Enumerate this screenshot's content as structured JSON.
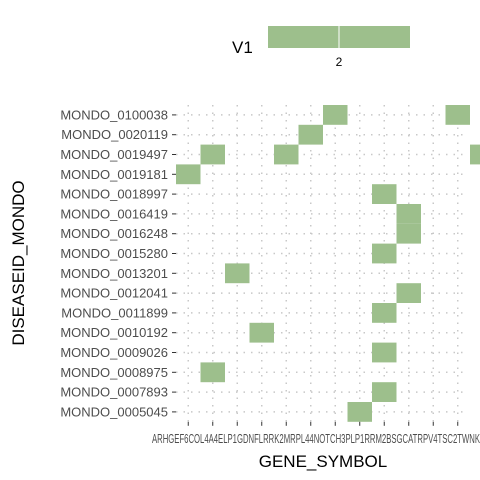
{
  "chart_data": {
    "type": "heatmap",
    "xlabel": "GENE_SYMBOL",
    "ylabel": "DISEASEID_MONDO",
    "fill_color": "#9dbf8c",
    "grid_color": "#c8c8c8",
    "text_color": "#4d4d4d",
    "legend": {
      "title": "V1",
      "placement": "top",
      "value_min": 2,
      "value_max": 2,
      "tick_labels": [
        "2"
      ]
    },
    "x_tick_labels": [
      "ARHGEF6",
      "COL4A4",
      "ELP1",
      "GDNF",
      "LRRK2",
      "MRPL44",
      "NOTCH3",
      "PLP1",
      "RRM2B",
      "SGCA",
      "TRPV4",
      "TSC2",
      "TWNK"
    ],
    "x_tick_caption": "ARHGEF6COL4A4ELP1GDNFLRRK2MRPL44NOTCH3PLP1RRM2BSGCATRPV4TSC2TWNK",
    "y_categories": [
      "MONDO_0100038",
      "MONDO_0020119",
      "MONDO_0019497",
      "MONDO_0019181",
      "MONDO_0018997",
      "MONDO_0016419",
      "MONDO_0016248",
      "MONDO_0015280",
      "MONDO_0013201",
      "MONDO_0012041",
      "MONDO_0011899",
      "MONDO_0010192",
      "MONDO_0009026",
      "MONDO_0008975",
      "MONDO_0007893",
      "MONDO_0005045"
    ],
    "cells": [
      {
        "x": 6,
        "y": 0,
        "value": 2
      },
      {
        "x": 11,
        "y": 0,
        "value": 2
      },
      {
        "x": 5,
        "y": 1,
        "value": 2
      },
      {
        "x": 1,
        "y": 2,
        "value": 2
      },
      {
        "x": 4,
        "y": 2,
        "value": 2
      },
      {
        "x": 12,
        "y": 2,
        "value": 2
      },
      {
        "x": 0,
        "y": 3,
        "value": 2
      },
      {
        "x": 8,
        "y": 4,
        "value": 2
      },
      {
        "x": 9,
        "y": 5,
        "value": 2
      },
      {
        "x": 9,
        "y": 6,
        "value": 2
      },
      {
        "x": 8,
        "y": 7,
        "value": 2
      },
      {
        "x": 2,
        "y": 8,
        "value": 2
      },
      {
        "x": 9,
        "y": 9,
        "value": 2
      },
      {
        "x": 8,
        "y": 10,
        "value": 2
      },
      {
        "x": 3,
        "y": 11,
        "value": 2
      },
      {
        "x": 8,
        "y": 12,
        "value": 2
      },
      {
        "x": 1,
        "y": 13,
        "value": 2
      },
      {
        "x": 8,
        "y": 14,
        "value": 2
      },
      {
        "x": 7,
        "y": 15,
        "value": 2
      }
    ],
    "grid": true
  }
}
